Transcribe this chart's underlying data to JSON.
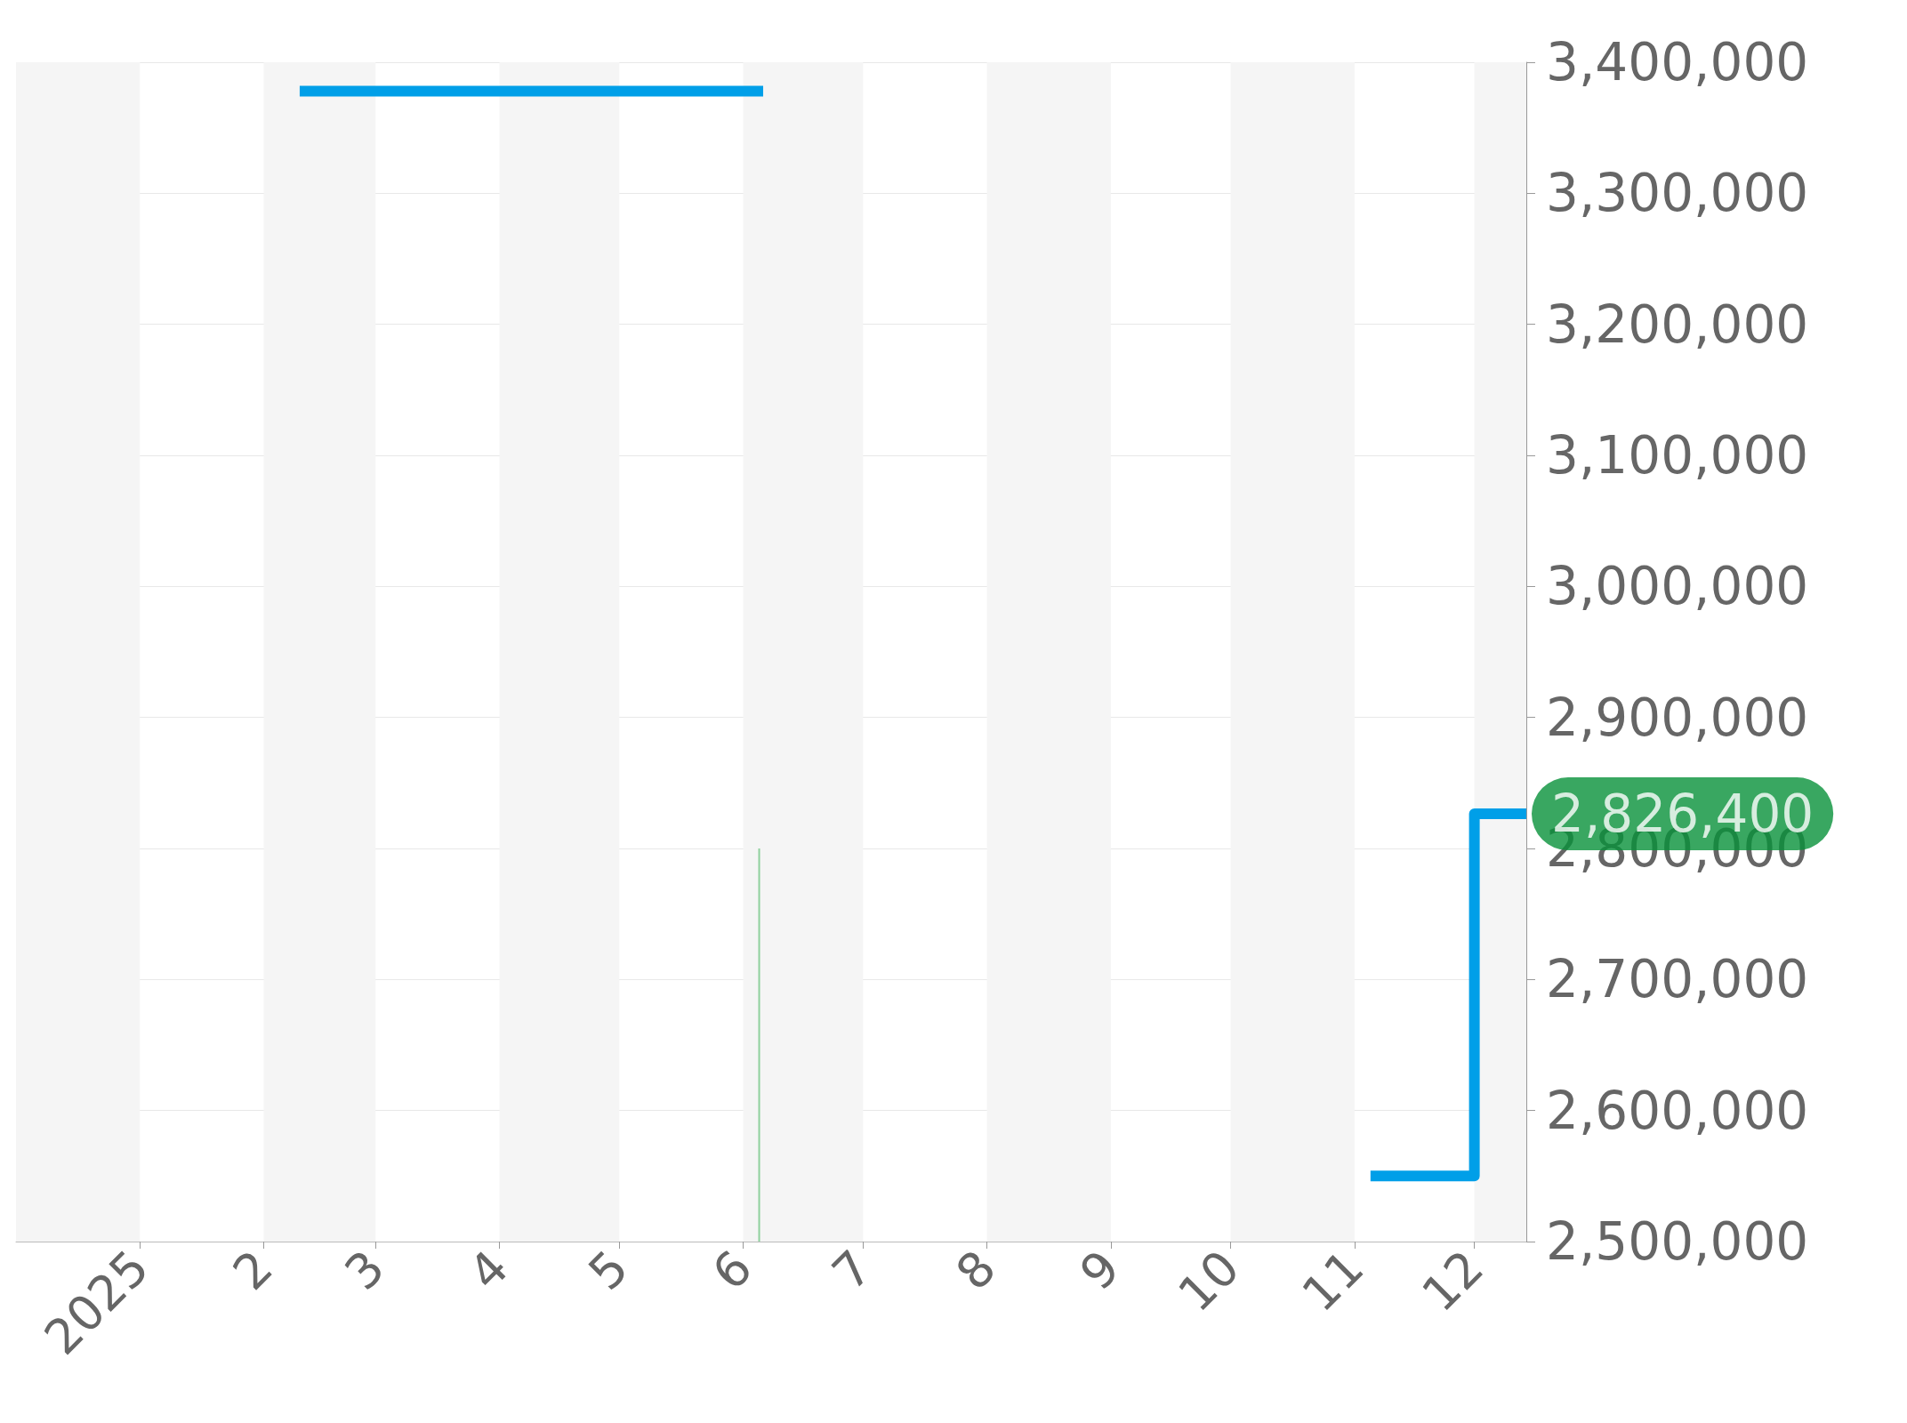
{
  "chart_data": {
    "type": "step",
    "xlim": [
      "2024-12-01",
      "2025-12-14"
    ],
    "xticks": [
      {
        "value": "2025-01-01",
        "label": "2025"
      },
      {
        "value": "2025-02-01",
        "label": "2"
      },
      {
        "value": "2025-03-01",
        "label": "3"
      },
      {
        "value": "2025-04-01",
        "label": "4"
      },
      {
        "value": "2025-05-01",
        "label": "5"
      },
      {
        "value": "2025-06-01",
        "label": "6"
      },
      {
        "value": "2025-07-01",
        "label": "7"
      },
      {
        "value": "2025-08-01",
        "label": "8"
      },
      {
        "value": "2025-09-01",
        "label": "9"
      },
      {
        "value": "2025-10-01",
        "label": "10"
      },
      {
        "value": "2025-11-01",
        "label": "11"
      },
      {
        "value": "2025-12-01",
        "label": "12"
      }
    ],
    "ylim": [
      2500000,
      3400000
    ],
    "yticks": [
      {
        "value": 2500000,
        "label": "2,500,000"
      },
      {
        "value": 2600000,
        "label": "2,600,000"
      },
      {
        "value": 2700000,
        "label": "2,700,000"
      },
      {
        "value": 2800000,
        "label": "2,800,000"
      },
      {
        "value": 2900000,
        "label": "2,900,000"
      },
      {
        "value": 3000000,
        "label": "3,000,000"
      },
      {
        "value": 3100000,
        "label": "3,100,000"
      },
      {
        "value": 3200000,
        "label": "3,200,000"
      },
      {
        "value": 3300000,
        "label": "3,300,000"
      },
      {
        "value": 3400000,
        "label": "3,400,000"
      }
    ],
    "grid": true,
    "series": [
      {
        "color": "#009fe8",
        "x": [
          "2025-02-10",
          "2025-06-06"
        ],
        "values": [
          3378000,
          3378000
        ]
      },
      {
        "color": "#009fe8",
        "x": [
          "2025-11-05",
          "2025-12-01",
          "2025-12-14"
        ],
        "values": [
          2550000,
          2826400,
          2826400
        ]
      },
      {
        "type": "bar",
        "color": "#8fd19e",
        "x": [
          "2025-06-05"
        ],
        "values": [
          2800000
        ]
      }
    ],
    "annotations": [
      {
        "text": "2,826,400",
        "x": "2025-12-14",
        "y": 2826400
      }
    ]
  }
}
